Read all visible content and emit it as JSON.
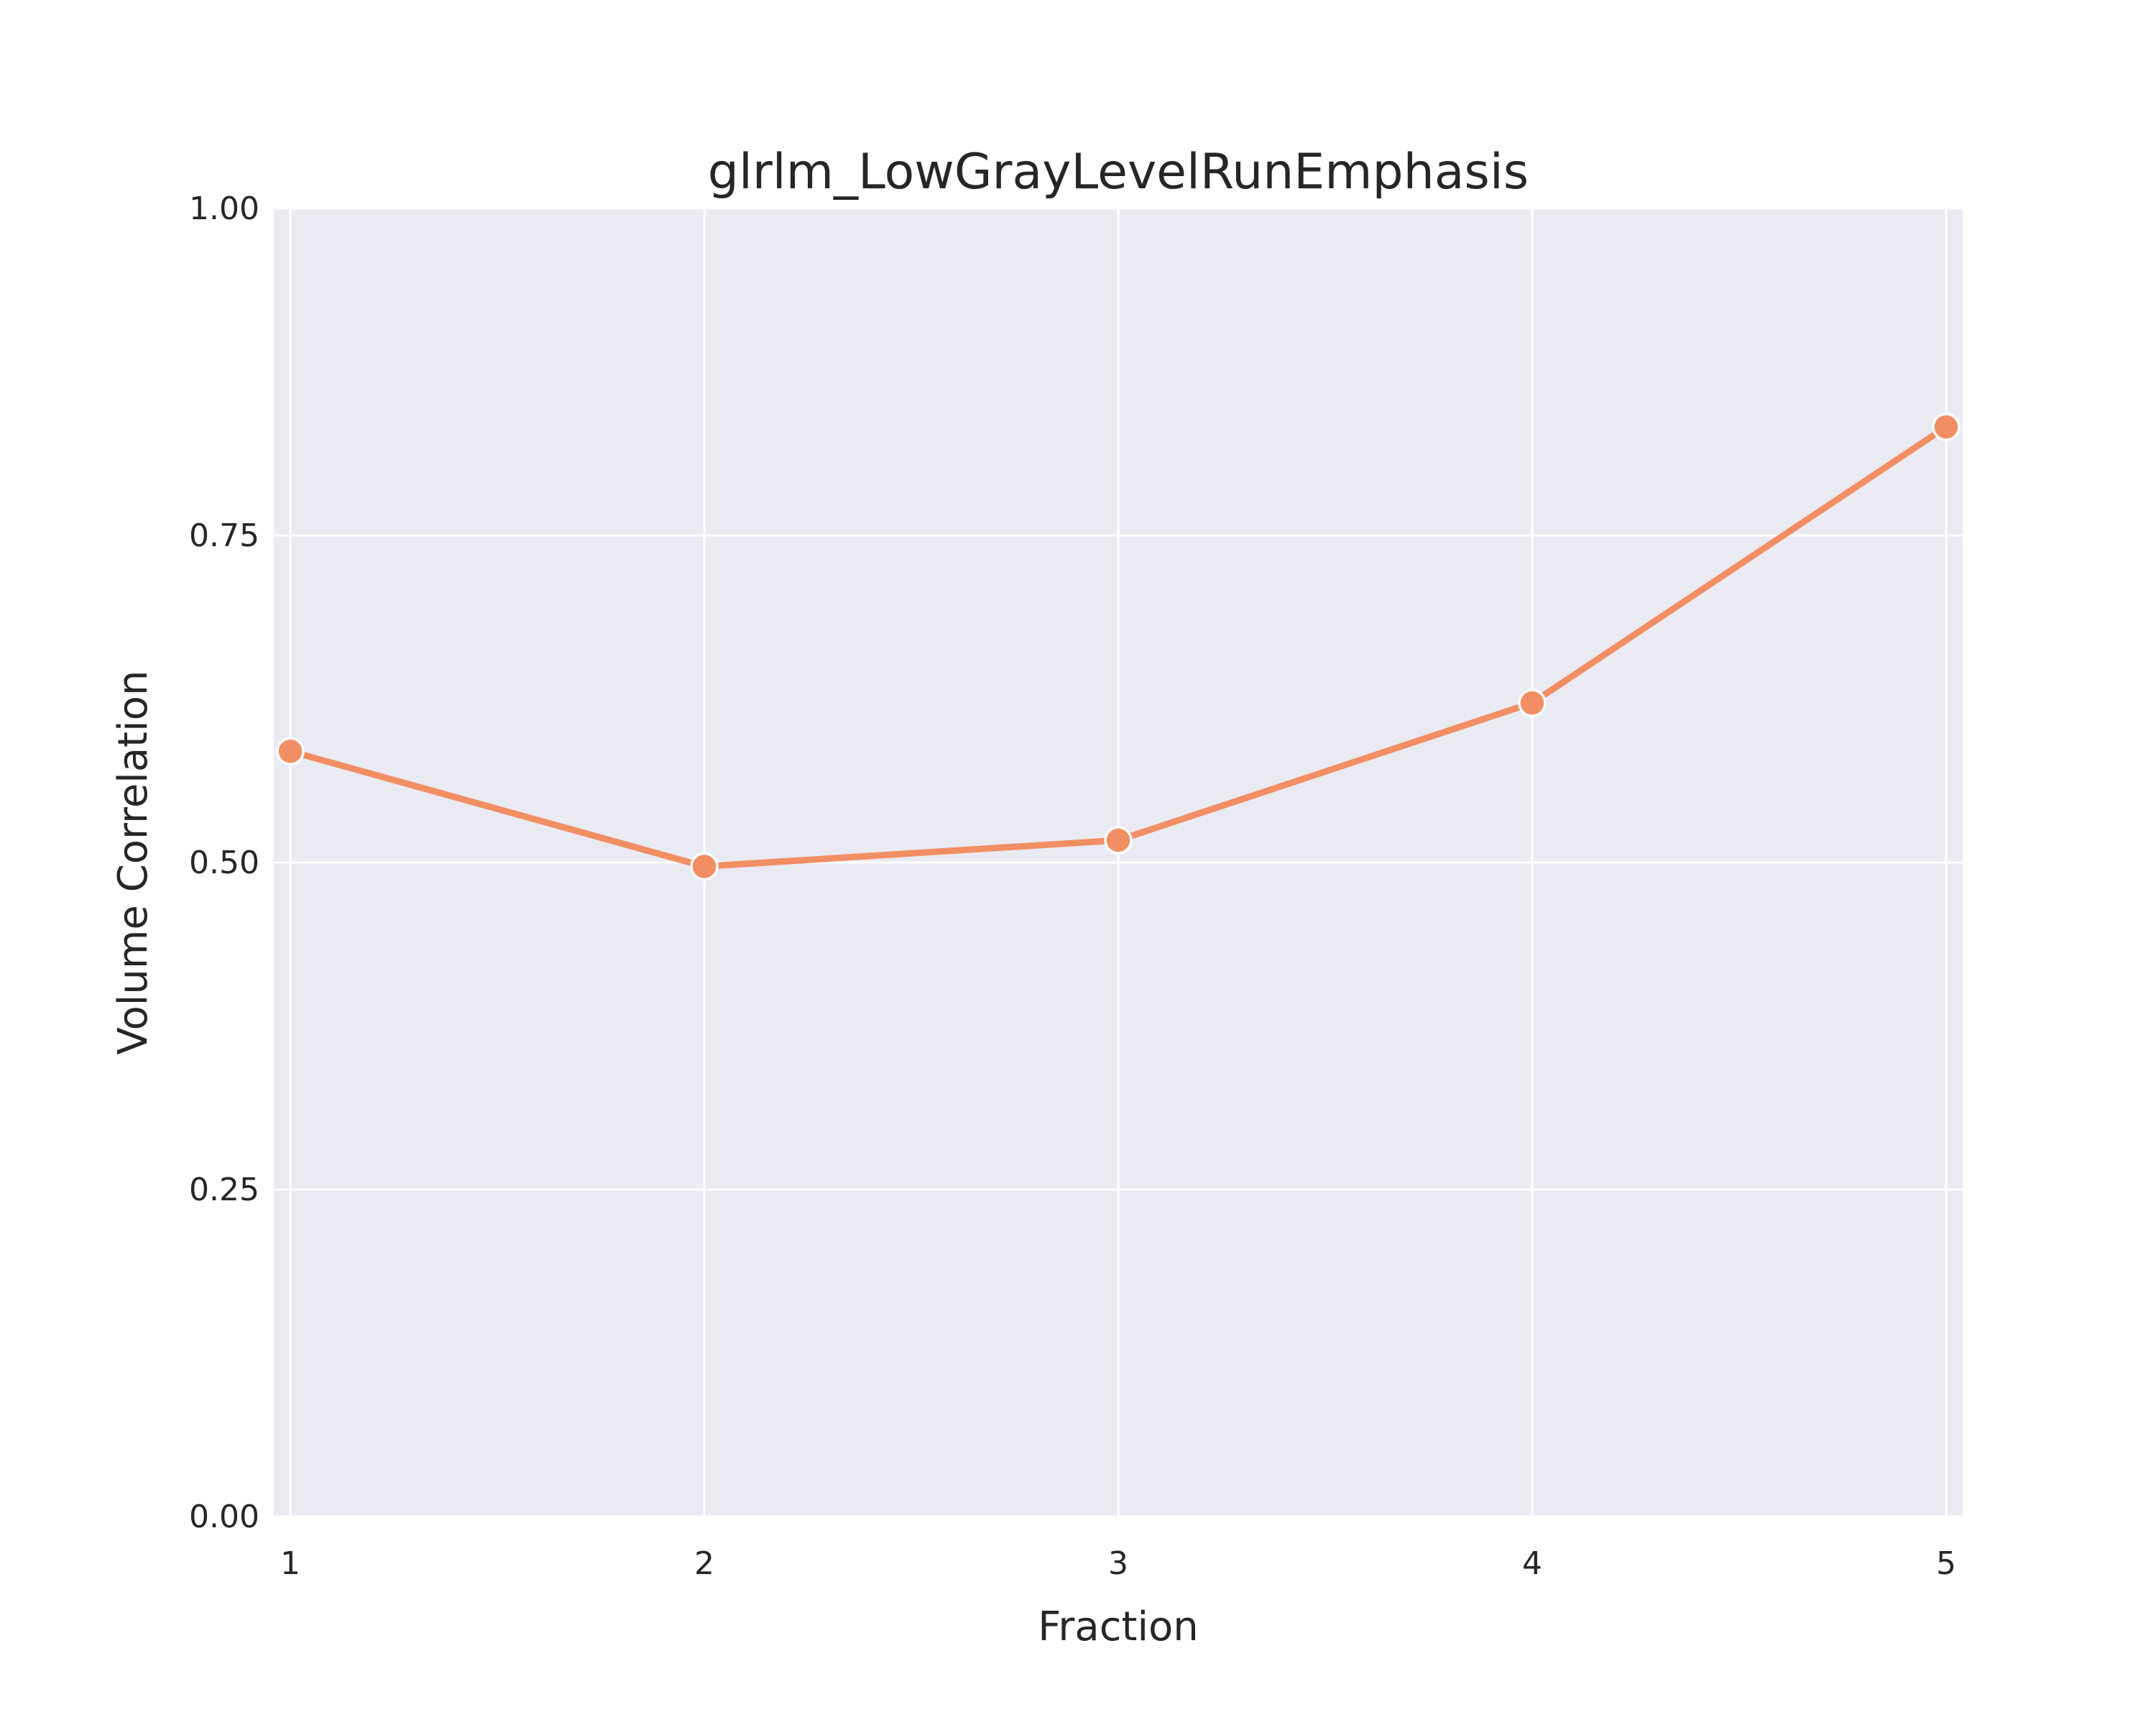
{
  "chart_data": {
    "type": "line",
    "title": "glrlm_LowGrayLevelRunEmphasis",
    "xlabel": "Fraction",
    "ylabel": "Volume Correlation",
    "x": [
      1,
      2,
      3,
      4,
      5
    ],
    "xticks": [
      "1",
      "2",
      "3",
      "4",
      "5"
    ],
    "yticks": [
      "0.00",
      "0.25",
      "0.50",
      "0.75",
      "1.00"
    ],
    "ylim": [
      0,
      1
    ],
    "xlim": [
      0.96,
      5.04
    ],
    "grid": true,
    "series": [
      {
        "values": [
          0.585,
          0.497,
          0.517,
          0.622,
          0.833
        ],
        "color": "#f28e63"
      }
    ],
    "background_color": "#eaeaf2",
    "grid_color": "#ffffff"
  }
}
